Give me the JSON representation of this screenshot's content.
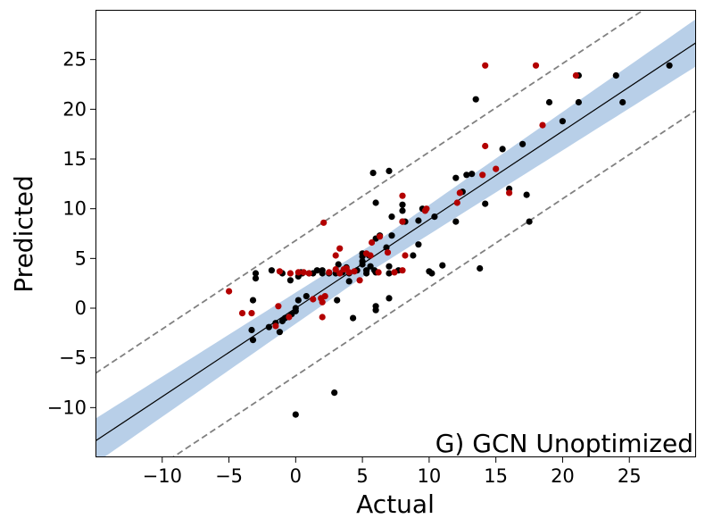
{
  "chart_data": {
    "type": "scatter",
    "title": "",
    "panel_label": "G) GCN Unoptimized",
    "xlabel": "Actual",
    "ylabel": "Predicted",
    "xlim": [
      -15,
      30
    ],
    "ylim": [
      -15,
      30
    ],
    "xticks": [
      -10,
      -5,
      0,
      5,
      10,
      15,
      20,
      25
    ],
    "yticks": [
      -10,
      -5,
      0,
      5,
      10,
      15,
      20,
      25
    ],
    "xtick_labels": [
      "−10",
      "−5",
      "0",
      "5",
      "10",
      "15",
      "20",
      "25"
    ],
    "ytick_labels": [
      "−10",
      "−5",
      "0",
      "5",
      "10",
      "15",
      "20",
      "25"
    ],
    "grid": false,
    "legend": "none",
    "colors": {
      "series_black": "#000000",
      "series_red": "#b30000",
      "band": "#b8cfe8",
      "fit_line": "#000000",
      "bounds": "#808080"
    },
    "fit_line": {
      "slope": 0.89,
      "intercept": 0.0
    },
    "confidence_band": {
      "half_width_at_center": 1.3,
      "center_x": 6,
      "half_width_growth": 0.045
    },
    "prediction_bounds": {
      "offset": 6.8
    },
    "series": [
      {
        "color": "#000000",
        "points": [
          [
            28,
            24.4
          ],
          [
            24.5,
            20.7
          ],
          [
            24,
            23.4
          ],
          [
            21.2,
            23.4
          ],
          [
            21.2,
            20.7
          ],
          [
            20,
            18.8
          ],
          [
            19,
            20.7
          ],
          [
            17,
            16.5
          ],
          [
            17.5,
            8.7
          ],
          [
            17.3,
            11.4
          ],
          [
            16,
            12
          ],
          [
            15.5,
            16
          ],
          [
            13.5,
            21
          ],
          [
            13.8,
            4
          ],
          [
            14.2,
            10.5
          ],
          [
            13.2,
            13.5
          ],
          [
            12.8,
            13.4
          ],
          [
            12,
            13.1
          ],
          [
            12.5,
            11.7
          ],
          [
            12,
            8.7
          ],
          [
            11,
            4.3
          ],
          [
            10.4,
            9.2
          ],
          [
            10.2,
            3.5
          ],
          [
            10,
            3.7
          ],
          [
            9.5,
            10
          ],
          [
            9.2,
            6.4
          ],
          [
            9.2,
            8.8
          ],
          [
            8.8,
            5.3
          ],
          [
            8,
            10.4
          ],
          [
            8,
            9.8
          ],
          [
            8,
            8.7
          ],
          [
            8.2,
            8.7
          ],
          [
            7.7,
            3.8
          ],
          [
            7.2,
            7.3
          ],
          [
            7.2,
            9.2
          ],
          [
            7,
            13.8
          ],
          [
            7,
            4.2
          ],
          [
            7,
            1
          ],
          [
            7,
            3.5
          ],
          [
            6.8,
            6.1
          ],
          [
            6.3,
            7.3
          ],
          [
            6,
            7
          ],
          [
            6,
            0.2
          ],
          [
            6,
            -0.2
          ],
          [
            5.8,
            13.6
          ],
          [
            6,
            10.6
          ],
          [
            6,
            3.6
          ],
          [
            5.9,
            3.8
          ],
          [
            5.5,
            5.3
          ],
          [
            5.6,
            4.2
          ],
          [
            5.3,
            3.5
          ],
          [
            5,
            5.5
          ],
          [
            5,
            5.2
          ],
          [
            5,
            4.7
          ],
          [
            5,
            4.4
          ],
          [
            5.3,
            3.8
          ],
          [
            4.6,
            3.8
          ],
          [
            4.3,
            -1
          ],
          [
            4,
            2.7
          ],
          [
            4,
            3.5
          ],
          [
            3.8,
            4.1
          ],
          [
            3.5,
            3.6
          ],
          [
            3.2,
            4.4
          ],
          [
            3.1,
            0.8
          ],
          [
            3,
            3.5
          ],
          [
            2.9,
            -8.5
          ],
          [
            2.5,
            3.5
          ],
          [
            2,
            3.5
          ],
          [
            2,
            3.8
          ],
          [
            1.6,
            3.8
          ],
          [
            1.3,
            3.5
          ],
          [
            1,
            3.5
          ],
          [
            0.8,
            1.2
          ],
          [
            0.5,
            3.5
          ],
          [
            0.4,
            3.6
          ],
          [
            0.2,
            3.2
          ],
          [
            0.2,
            0.8
          ],
          [
            0,
            0
          ],
          [
            0,
            -0.3
          ],
          [
            -0.3,
            -0.6
          ],
          [
            -0.4,
            2.8
          ],
          [
            -0.8,
            -1
          ],
          [
            -1,
            -1.3
          ],
          [
            -1,
            3.5
          ],
          [
            -1.2,
            -2.4
          ],
          [
            -1.5,
            -1.5
          ],
          [
            -1.8,
            3.8
          ],
          [
            -2,
            -1.9
          ],
          [
            -3,
            3.5
          ],
          [
            -3,
            3
          ],
          [
            -3.2,
            -3.2
          ],
          [
            -3.2,
            0.8
          ],
          [
            -3.3,
            -2.2
          ],
          [
            0,
            -10.7
          ]
        ]
      },
      {
        "color": "#b30000",
        "points": [
          [
            18,
            24.4
          ],
          [
            14.2,
            24.4
          ],
          [
            21,
            23.4
          ],
          [
            18.5,
            18.4
          ],
          [
            15,
            14
          ],
          [
            14,
            13.4
          ],
          [
            14.2,
            16.3
          ],
          [
            16,
            11.6
          ],
          [
            12.3,
            11.6
          ],
          [
            12.1,
            10.6
          ],
          [
            9.8,
            10
          ],
          [
            9.7,
            9.8
          ],
          [
            8,
            11.3
          ],
          [
            8,
            8.7
          ],
          [
            8.2,
            5.3
          ],
          [
            8,
            3.8
          ],
          [
            7.4,
            3.6
          ],
          [
            6.9,
            5.6
          ],
          [
            6.3,
            7.2
          ],
          [
            6.2,
            3.6
          ],
          [
            5.7,
            6.6
          ],
          [
            5.6,
            5.3
          ],
          [
            5.3,
            5.5
          ],
          [
            4.8,
            2.8
          ],
          [
            4.4,
            3.7
          ],
          [
            4,
            3.6
          ],
          [
            3.8,
            4
          ],
          [
            3.6,
            3.9
          ],
          [
            3.3,
            3.5
          ],
          [
            3.3,
            6
          ],
          [
            3,
            5.3
          ],
          [
            3,
            3.9
          ],
          [
            2.5,
            3.6
          ],
          [
            2.2,
            1.2
          ],
          [
            2.1,
            8.6
          ],
          [
            2,
            -0.9
          ],
          [
            2,
            0.6
          ],
          [
            1.9,
            1
          ],
          [
            1.3,
            0.9
          ],
          [
            1,
            3.5
          ],
          [
            0.6,
            3.6
          ],
          [
            0.2,
            3.6
          ],
          [
            -0.4,
            3.5
          ],
          [
            -0.5,
            -0.9
          ],
          [
            -1.2,
            3.7
          ],
          [
            -1.3,
            0.2
          ],
          [
            -1.5,
            -1.8
          ],
          [
            -3.3,
            -0.5
          ],
          [
            -4,
            -0.5
          ],
          [
            -5,
            1.7
          ]
        ]
      }
    ]
  }
}
